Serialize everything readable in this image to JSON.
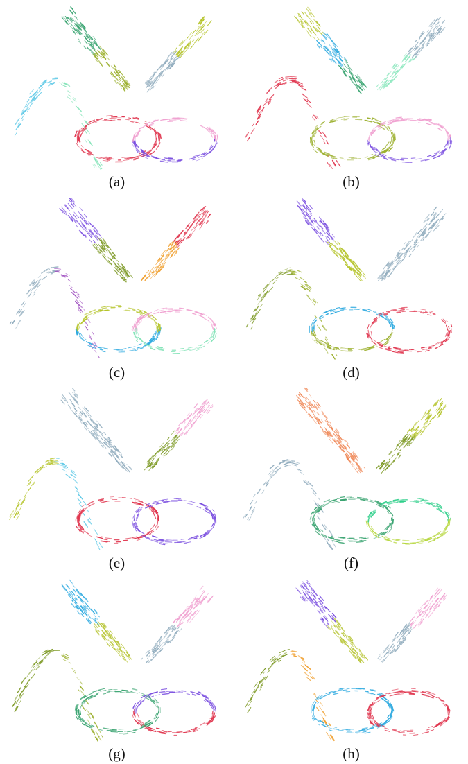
{
  "panels": [
    {
      "caption": "(a)",
      "clusters": {
        "v_left": [
          "#3aa471",
          "#9cb02e"
        ],
        "v_right": [
          "#93aebf",
          "#b5c42a"
        ],
        "arch": [
          "#5cc8e6",
          "#82e3b7"
        ],
        "ring_left": [
          "#e0344d",
          "#e0344d"
        ],
        "ring_right": [
          "#7b4fe0",
          "#f0a0d0"
        ]
      }
    },
    {
      "caption": "(b)",
      "clusters": {
        "v_left": [
          "#b9c638",
          "#2eaae0",
          "#3aa471"
        ],
        "v_right": [
          "#8fe8c0",
          "#93aebf"
        ],
        "arch": [
          "#e0344d",
          "#e0344d"
        ],
        "ring_left": [
          "#9cb02e",
          "#9cb02e"
        ],
        "ring_right": [
          "#7b4fe0",
          "#f0a0d0"
        ]
      }
    },
    {
      "caption": "(c)",
      "clusters": {
        "v_left": [
          "#7b4fe0",
          "#7e9a26"
        ],
        "v_right": [
          "#f0a030",
          "#e0344d"
        ],
        "arch": [
          "#93aebf",
          "#a050c0"
        ],
        "ring_left": [
          "#2eaae0",
          "#b5c42a"
        ],
        "ring_right": [
          "#82e3b7",
          "#f0a0d0"
        ]
      }
    },
    {
      "caption": "(d)",
      "clusters": {
        "v_left": [
          "#7b4fe0",
          "#b5c42a"
        ],
        "v_right": [
          "#93aebf",
          "#93aebf"
        ],
        "arch": [
          "#7e9a26",
          "#9cb02e"
        ],
        "ring_left": [
          "#9cb02e",
          "#2eaae0"
        ],
        "ring_right": [
          "#e0344d",
          "#e0344d"
        ]
      }
    },
    {
      "caption": "(e)",
      "clusters": {
        "v_left": [
          "#93aebf",
          "#93aebf"
        ],
        "v_right": [
          "#7e9a26",
          "#f0a0d0"
        ],
        "arch": [
          "#b5c42a",
          "#5cc8e6"
        ],
        "ring_left": [
          "#e0344d",
          "#e0344d"
        ],
        "ring_right": [
          "#7b4fe0",
          "#7b4fe0"
        ]
      }
    },
    {
      "caption": "(f)",
      "clusters": {
        "v_left": [
          "#f08a5a",
          "#f08a5a"
        ],
        "v_right": [
          "#7e9a26",
          "#b5c42a"
        ],
        "arch": [
          "#93aebf",
          "#93aebf"
        ],
        "ring_left": [
          "#3aa471",
          "#3aa471"
        ],
        "ring_right": [
          "#b5d63a",
          "#2ecf8a"
        ]
      }
    },
    {
      "caption": "(g)",
      "clusters": {
        "v_left": [
          "#2eaae0",
          "#b9c638"
        ],
        "v_right": [
          "#93aebf",
          "#f0a0d0"
        ],
        "arch": [
          "#7e9a26",
          "#9cb02e"
        ],
        "ring_left": [
          "#3aa471",
          "#3aa471"
        ],
        "ring_right": [
          "#e0344d",
          "#7b4fe0"
        ]
      }
    },
    {
      "caption": "(h)",
      "clusters": {
        "v_left": [
          "#7b4fe0",
          "#b9c638"
        ],
        "v_right": [
          "#93aebf",
          "#f0a0d0"
        ],
        "arch": [
          "#7e9a26",
          "#f0a030"
        ],
        "ring_left": [
          "#2eaae0",
          "#2eaae0"
        ],
        "ring_right": [
          "#e0344d",
          "#e0344d"
        ]
      }
    }
  ]
}
